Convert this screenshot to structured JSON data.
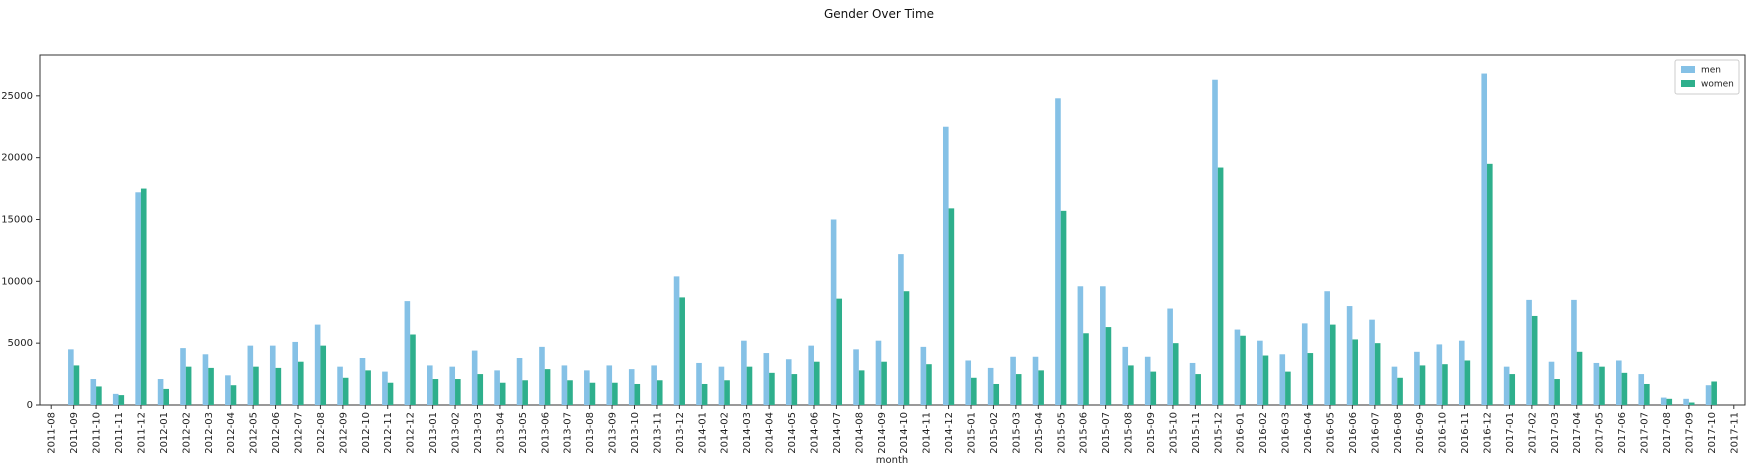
{
  "chart_data": {
    "type": "bar",
    "title": "Gender Over Time",
    "xlabel": "month",
    "ylabel": "",
    "ylim": [
      0,
      28300
    ],
    "yticks": [
      0,
      5000,
      10000,
      15000,
      20000,
      25000
    ],
    "grid": false,
    "legend_position": "top-right",
    "colors": {
      "men": "#85c1e6",
      "women": "#2eaf8c"
    },
    "categories": [
      "2011-08",
      "2011-09",
      "2011-10",
      "2011-11",
      "2011-12",
      "2012-01",
      "2012-02",
      "2012-03",
      "2012-04",
      "2012-05",
      "2012-06",
      "2012-07",
      "2012-08",
      "2012-09",
      "2012-10",
      "2012-11",
      "2012-12",
      "2013-01",
      "2013-02",
      "2013-03",
      "2013-04",
      "2013-05",
      "2013-06",
      "2013-07",
      "2013-08",
      "2013-09",
      "2013-10",
      "2013-11",
      "2013-12",
      "2014-01",
      "2014-02",
      "2014-03",
      "2014-04",
      "2014-05",
      "2014-06",
      "2014-07",
      "2014-08",
      "2014-09",
      "2014-10",
      "2014-11",
      "2014-12",
      "2015-01",
      "2015-02",
      "2015-03",
      "2015-04",
      "2015-05",
      "2015-06",
      "2015-07",
      "2015-08",
      "2015-09",
      "2015-10",
      "2015-11",
      "2015-12",
      "2016-01",
      "2016-02",
      "2016-03",
      "2016-04",
      "2016-05",
      "2016-06",
      "2016-07",
      "2016-08",
      "2016-09",
      "2016-10",
      "2016-11",
      "2016-12",
      "2017-01",
      "2017-02",
      "2017-03",
      "2017-04",
      "2017-05",
      "2017-06",
      "2017-07",
      "2017-08",
      "2017-09",
      "2017-10",
      "2017-11"
    ],
    "series": [
      {
        "name": "men",
        "values": [
          0,
          4500,
          2100,
          900,
          17200,
          2100,
          4600,
          4100,
          2400,
          4800,
          4800,
          5100,
          6500,
          3100,
          3800,
          2700,
          8400,
          3200,
          3100,
          4400,
          2800,
          3800,
          4700,
          3200,
          2800,
          3200,
          2900,
          3200,
          10400,
          3400,
          3100,
          5200,
          4200,
          3700,
          4800,
          15000,
          4500,
          5200,
          12200,
          4700,
          22500,
          3600,
          3000,
          3900,
          3900,
          24800,
          9600,
          9600,
          4700,
          3900,
          7800,
          3400,
          26300,
          6100,
          5200,
          4100,
          6600,
          9200,
          8000,
          6900,
          3100,
          4300,
          4900,
          5200,
          26800,
          3100,
          8500,
          3500,
          8500,
          3400,
          3600,
          2500,
          600,
          500,
          1600,
          0
        ]
      },
      {
        "name": "women",
        "values": [
          0,
          3200,
          1500,
          800,
          17500,
          1300,
          3100,
          3000,
          1600,
          3100,
          3000,
          3500,
          4800,
          2200,
          2800,
          1800,
          5700,
          2100,
          2100,
          2500,
          1800,
          2000,
          2900,
          2000,
          1800,
          1800,
          1700,
          2000,
          8700,
          1700,
          2000,
          3100,
          2600,
          2500,
          3500,
          8600,
          2800,
          3500,
          9200,
          3300,
          15900,
          2200,
          1700,
          2500,
          2800,
          15700,
          5800,
          6300,
          3200,
          2700,
          5000,
          2500,
          19200,
          5600,
          4000,
          2700,
          4200,
          6500,
          5300,
          5000,
          2200,
          3200,
          3300,
          3600,
          19500,
          2500,
          7200,
          2100,
          4300,
          3100,
          2600,
          1700,
          500,
          200,
          1900,
          0
        ]
      }
    ]
  }
}
